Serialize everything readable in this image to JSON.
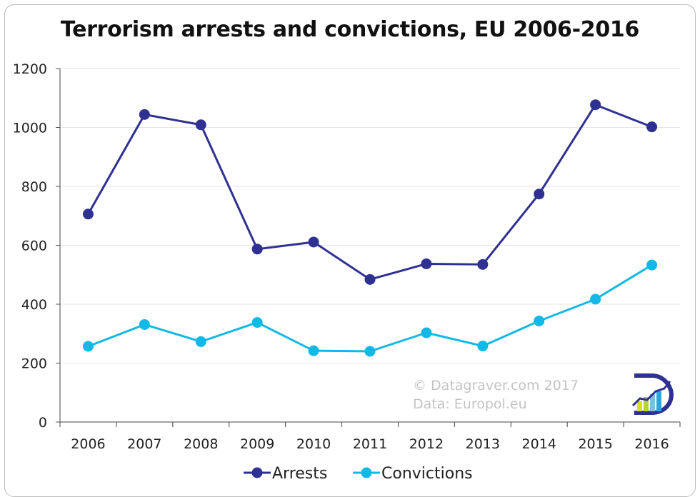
{
  "chart_data": {
    "type": "line",
    "title": "Terrorism arrests and convictions, EU 2006-2016",
    "categories": [
      "2006",
      "2007",
      "2008",
      "2009",
      "2010",
      "2011",
      "2012",
      "2013",
      "2014",
      "2015",
      "2016"
    ],
    "series": [
      {
        "name": "Arrests",
        "color": "#2e3192",
        "values": [
          706,
          1044,
          1009,
          587,
          611,
          484,
          537,
          535,
          774,
          1077,
          1002
        ]
      },
      {
        "name": "Convictions",
        "color": "#12b8e6",
        "values": [
          257,
          331,
          273,
          338,
          242,
          240,
          303,
          258,
          343,
          417,
          533
        ]
      }
    ],
    "ylim": [
      0,
      1200
    ],
    "yticks": [
      0,
      200,
      400,
      600,
      800,
      1000,
      1200
    ],
    "grid": true,
    "legend": "bottom-center",
    "credits": [
      "© Datagraver.com 2017",
      "Data: Europol.eu"
    ],
    "logo": "datagraver-logo"
  }
}
